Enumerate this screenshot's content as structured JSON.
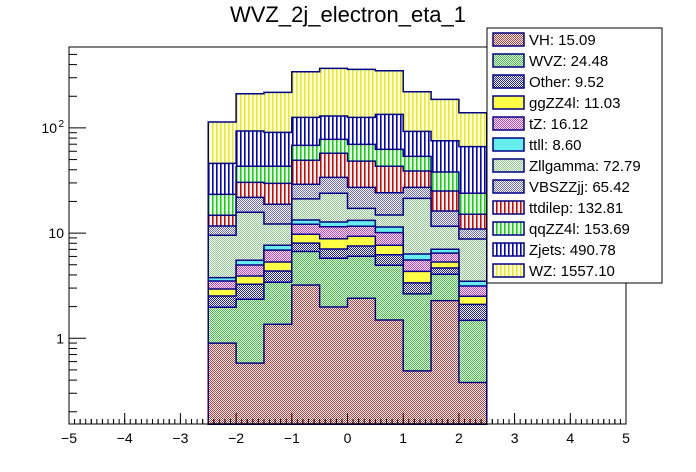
{
  "chart_data": {
    "type": "bar",
    "stacked": true,
    "histogram": true,
    "title": "WVZ_2j_electron_eta_1",
    "xlabel": "",
    "ylabel": "",
    "xlim": [
      -5,
      5
    ],
    "ylim": [
      0.153,
      588
    ],
    "yscale": "log",
    "grid": false,
    "legend_position": "top-right",
    "bin_edges": [
      -2.5,
      -2.0,
      -1.5,
      -1.0,
      -0.5,
      0.0,
      0.5,
      1.0,
      1.5,
      2.0,
      2.5
    ],
    "x_ticks": [
      "-5",
      "-4",
      "-3",
      "-2",
      "-1",
      "0",
      "1",
      "2",
      "3",
      "4",
      "5"
    ],
    "x_tick_values": [
      -5,
      -4,
      -3,
      -2,
      -1,
      0,
      1,
      2,
      3,
      4,
      5
    ],
    "y_ticks": [
      {
        "value": 1,
        "label": "1",
        "sup": ""
      },
      {
        "value": 10,
        "label": "10",
        "sup": ""
      },
      {
        "value": 100,
        "label": "10",
        "sup": "2"
      }
    ],
    "series": [
      {
        "name": "VH",
        "legend": "VH: 15.09",
        "total": 15.09,
        "color": "#cc3333",
        "line": "#000080",
        "pattern": "checker",
        "values": [
          0.9,
          0.58,
          1.36,
          3.21,
          1.98,
          2.4,
          1.49,
          0.49,
          2.28,
          0.38
        ]
      },
      {
        "name": "WVZ",
        "legend": "WVZ: 24.48",
        "total": 24.48,
        "color": "#33cc33",
        "line": "#000080",
        "pattern": "checker",
        "values": [
          1.07,
          1.77,
          2.05,
          3.48,
          3.78,
          3.62,
          3.45,
          2.15,
          1.78,
          1.1
        ]
      },
      {
        "name": "Other",
        "legend": "Other: 9.52",
        "total": 9.52,
        "color": "#1a1acc",
        "line": "#000080",
        "pattern": "checker",
        "values": [
          0.55,
          0.91,
          0.95,
          1.33,
          1.3,
          1.52,
          1.28,
          0.72,
          0.6,
          0.62
        ]
      },
      {
        "name": "ggZZ4l",
        "legend": "ggZZ4l: 11.03",
        "total": 11.03,
        "color": "#ffff44",
        "line": "#000080",
        "pattern": "solid",
        "values": [
          0.42,
          0.65,
          0.95,
          1.72,
          1.77,
          1.8,
          1.44,
          0.97,
          0.65,
          0.41
        ]
      },
      {
        "name": "tZ",
        "legend": "tZ: 16.12",
        "total": 16.12,
        "color": "#dd33dd",
        "line": "#000080",
        "pattern": "checker",
        "values": [
          0.56,
          1.06,
          1.57,
          2.39,
          2.67,
          2.26,
          2.44,
          1.22,
          1.13,
          0.63
        ]
      },
      {
        "name": "ttll",
        "legend": "ttll: 8.60",
        "total": 8.6,
        "color": "#66eeee",
        "line": "#000080",
        "pattern": "solid",
        "values": [
          0.27,
          0.54,
          0.78,
          1.19,
          1.25,
          1.6,
          1.33,
          0.78,
          0.57,
          0.34
        ]
      },
      {
        "name": "Zllgamma",
        "legend": "Zllgamma: 72.79",
        "total": 72.79,
        "color": "#88cc88",
        "line": "#000080",
        "pattern": "checker-light",
        "values": [
          5.76,
          10.26,
          4.54,
          7.8,
          11.15,
          4.0,
          3.43,
          15.07,
          4.59,
          5.31
        ]
      },
      {
        "name": "VBSZZjj",
        "legend": "VBSZZjj: 65.42",
        "total": 65.42,
        "color": "#6666cc",
        "line": "#000080",
        "pattern": "checker-light",
        "values": [
          2.15,
          6.1,
          6.6,
          8.0,
          10.0,
          10.0,
          9.3,
          5.8,
          4.6,
          2.15
        ]
      },
      {
        "name": "ttdilep",
        "legend": "ttdilep: 132.81",
        "total": 132.81,
        "color": "#dd0000",
        "line": "#000080",
        "pattern": "vlines",
        "values": [
          3.08,
          8.5,
          10.9,
          20.1,
          23.5,
          21.1,
          19.1,
          11.7,
          8.9,
          4.16
        ]
      },
      {
        "name": "qqZZ4l",
        "legend": "qqZZ4l: 153.69",
        "total": 153.69,
        "color": "#00dd00",
        "line": "#000080",
        "pattern": "vlines",
        "values": [
          8.6,
          12.8,
          13.5,
          19.1,
          20.5,
          21.5,
          19.3,
          14.8,
          13.0,
          8.8
        ]
      },
      {
        "name": "Zjets",
        "legend": "Zjets: 490.78",
        "total": 490.78,
        "color": "#0000cc",
        "line": "#000080",
        "pattern": "vlines",
        "values": [
          22.7,
          50.2,
          47.6,
          57.8,
          51.8,
          56.3,
          72.1,
          39.1,
          37.4,
          42.4
        ]
      },
      {
        "name": "WZ",
        "legend": "WZ: 1557.10",
        "total": 1557.1,
        "color": "#eeee00",
        "line": "#000080",
        "pattern": "vlines",
        "values": [
          67.7,
          118,
          127,
          216,
          239,
          234,
          215,
          128,
          111.5,
          73.2
        ]
      }
    ]
  }
}
